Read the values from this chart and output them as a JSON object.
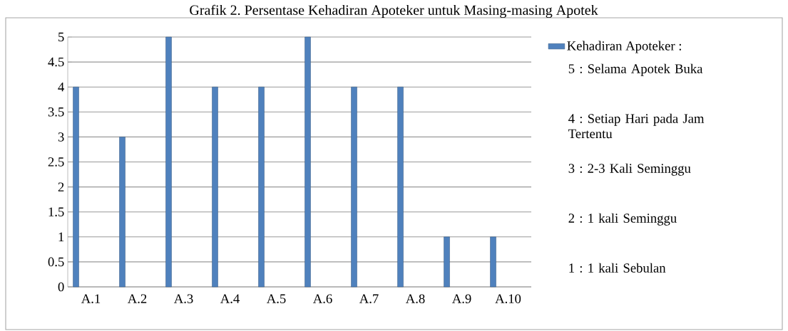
{
  "chart_data": {
    "type": "bar",
    "title": "Grafik 2. Persentase Kehadiran Apoteker untuk Masing-masing Apotek",
    "categories": [
      "A.1",
      "A.2",
      "A.3",
      "A.4",
      "A.5",
      "A.6",
      "A.7",
      "A.8",
      "A.9",
      "A.10"
    ],
    "series": [
      {
        "name": "Kehadiran Apoteker :",
        "color": "#4f81bd",
        "values": [
          4,
          3,
          5,
          4,
          4,
          5,
          4,
          4,
          1,
          1
        ]
      }
    ],
    "ylim": [
      0,
      5
    ],
    "yticks": [
      0,
      0.5,
      1,
      1.5,
      2,
      2.5,
      3,
      3.5,
      4,
      4.5,
      5
    ],
    "grid": "y",
    "legend": "right",
    "annotations": [
      "5 : Selama Apotek Buka",
      "4 : Setiap Hari pada Jam Tertentu",
      "3 : 2-3 Kali Seminggu",
      "2 : 1 kali Seminggu",
      "1 : 1 kali Sebulan"
    ]
  }
}
